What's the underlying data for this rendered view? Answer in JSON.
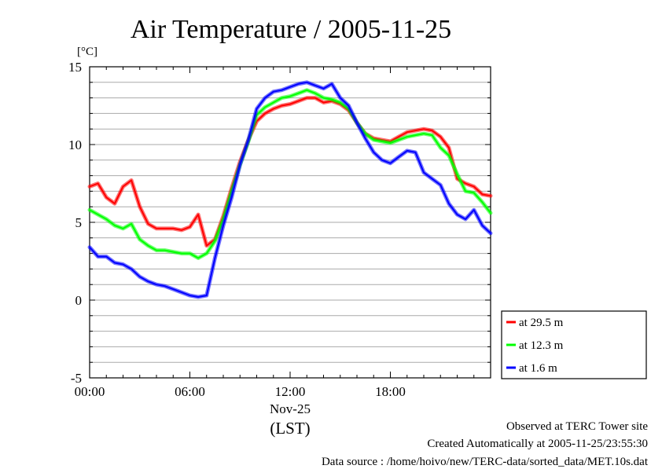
{
  "chart_data": {
    "type": "line",
    "title": "Air Temperature / 2005-11-25",
    "ylabel": "[°C]",
    "xlabel": "(LST)",
    "date_label": "Nov-25",
    "ylim": [
      -5,
      15
    ],
    "xlim": [
      0,
      24
    ],
    "y_ticks": [
      15,
      10,
      5,
      0,
      -5
    ],
    "x_ticks": [
      {
        "h": 0,
        "label": "00:00"
      },
      {
        "h": 6,
        "label": "06:00"
      },
      {
        "h": 12,
        "label": "12:00"
      },
      {
        "h": 18,
        "label": "18:00"
      }
    ],
    "grid": true,
    "legend_position": "right",
    "x": [
      0,
      0.5,
      1,
      1.5,
      2,
      2.5,
      3,
      3.5,
      4,
      4.5,
      5,
      5.5,
      6,
      6.5,
      7,
      7.5,
      8,
      8.5,
      9,
      9.5,
      10,
      10.5,
      11,
      11.5,
      12,
      12.5,
      13,
      13.5,
      14,
      14.5,
      15,
      15.5,
      16,
      16.5,
      17,
      17.5,
      18,
      18.5,
      19,
      19.5,
      20,
      20.5,
      21,
      21.5,
      22,
      22.5,
      23,
      23.5,
      24
    ],
    "series": [
      {
        "name": "at 29.5 m",
        "color": "#ff0000",
        "values": [
          7.3,
          7.5,
          6.6,
          6.2,
          7.3,
          7.7,
          6.0,
          4.9,
          4.6,
          4.6,
          4.6,
          4.5,
          4.7,
          5.5,
          3.5,
          3.9,
          5.4,
          7.2,
          8.9,
          10.3,
          11.5,
          12.0,
          12.3,
          12.5,
          12.6,
          12.8,
          13.0,
          13.0,
          12.7,
          12.8,
          12.6,
          12.2,
          11.4,
          10.7,
          10.4,
          10.3,
          10.2,
          10.5,
          10.8,
          10.9,
          11.0,
          10.9,
          10.5,
          9.8,
          7.8,
          7.5,
          7.3,
          6.8,
          6.7
        ]
      },
      {
        "name": "at 12.3 m",
        "color": "#00ff00",
        "values": [
          5.8,
          5.5,
          5.2,
          4.8,
          4.6,
          4.9,
          3.9,
          3.5,
          3.2,
          3.2,
          3.1,
          3.0,
          3.0,
          2.7,
          3.0,
          3.8,
          5.2,
          7.0,
          8.7,
          10.2,
          11.9,
          12.4,
          12.7,
          13.0,
          13.1,
          13.3,
          13.5,
          13.3,
          13.0,
          12.9,
          12.7,
          12.3,
          11.4,
          10.7,
          10.3,
          10.2,
          10.1,
          10.3,
          10.5,
          10.6,
          10.7,
          10.6,
          9.8,
          9.3,
          8.1,
          7.0,
          6.9,
          6.3,
          5.6
        ]
      },
      {
        "name": "at 1.6 m",
        "color": "#0000ff",
        "values": [
          3.4,
          2.8,
          2.8,
          2.4,
          2.3,
          2.0,
          1.5,
          1.2,
          1.0,
          0.9,
          0.7,
          0.5,
          0.3,
          0.2,
          0.3,
          2.7,
          4.8,
          6.6,
          8.7,
          10.3,
          12.3,
          13.0,
          13.4,
          13.5,
          13.7,
          13.9,
          14.0,
          13.8,
          13.6,
          13.9,
          13.0,
          12.5,
          11.4,
          10.4,
          9.5,
          9.0,
          8.8,
          9.2,
          9.6,
          9.5,
          8.2,
          7.8,
          7.4,
          6.2,
          5.5,
          5.2,
          5.8,
          4.8,
          4.3
        ]
      }
    ]
  },
  "footer": {
    "site": "Observed at TERC Tower site",
    "created": "Created Automatically at 2005-11-25/23:55:30",
    "source": "Data source : /home/hoivo/new/TERC-data/sorted_data/MET.10s.dat"
  }
}
